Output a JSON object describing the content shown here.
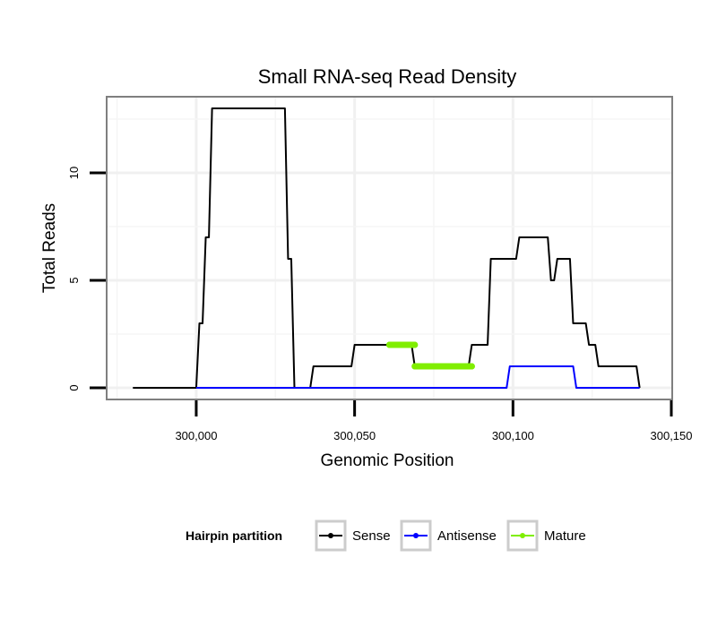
{
  "chart_data": {
    "type": "line",
    "title": "Small RNA-seq Read Density",
    "xlabel": "Genomic Position",
    "ylabel": "Total Reads",
    "xlim": [
      299972,
      300150
    ],
    "ylim": [
      -0.5,
      13.5
    ],
    "x_ticks": [
      300000,
      300050,
      300100,
      300150
    ],
    "x_tick_labels": [
      "300,000",
      "300,050",
      "300,100",
      "300,150"
    ],
    "y_ticks": [
      0,
      5,
      10
    ],
    "y_tick_labels": [
      "0",
      "5",
      "10"
    ],
    "grid": true,
    "legend_title": "Hairpin partition",
    "legend_position": "bottom",
    "series": [
      {
        "name": "Sense",
        "color": "#000000",
        "points": [
          [
            299980,
            0
          ],
          [
            300000,
            0
          ],
          [
            300001,
            3
          ],
          [
            300002,
            3
          ],
          [
            300003,
            7
          ],
          [
            300004,
            7
          ],
          [
            300005,
            13
          ],
          [
            300028,
            13
          ],
          [
            300029,
            6
          ],
          [
            300030,
            6
          ],
          [
            300031,
            0
          ],
          [
            300036,
            0
          ],
          [
            300037,
            1
          ],
          [
            300049,
            1
          ],
          [
            300050,
            2
          ],
          [
            300068,
            2
          ],
          [
            300069,
            1
          ],
          [
            300086,
            1
          ],
          [
            300087,
            2
          ],
          [
            300092,
            2
          ],
          [
            300093,
            6
          ],
          [
            300101,
            6
          ],
          [
            300102,
            7
          ],
          [
            300111,
            7
          ],
          [
            300112,
            5
          ],
          [
            300113,
            5
          ],
          [
            300114,
            6
          ],
          [
            300118,
            6
          ],
          [
            300119,
            3
          ],
          [
            300123,
            3
          ],
          [
            300124,
            2
          ],
          [
            300126,
            2
          ],
          [
            300127,
            1
          ],
          [
            300139,
            1
          ],
          [
            300140,
            0
          ]
        ]
      },
      {
        "name": "Antisense",
        "color": "#0000ff",
        "points": [
          [
            300000,
            0
          ],
          [
            300098,
            0
          ],
          [
            300099,
            1
          ],
          [
            300119,
            1
          ],
          [
            300120,
            0
          ],
          [
            300140,
            0
          ]
        ]
      },
      {
        "name": "Mature",
        "color": "#80ee00",
        "segments": [
          [
            [
              300061,
              2
            ],
            [
              300069,
              2
            ]
          ],
          [
            [
              300069,
              1
            ],
            [
              300087,
              1
            ]
          ]
        ]
      }
    ]
  }
}
